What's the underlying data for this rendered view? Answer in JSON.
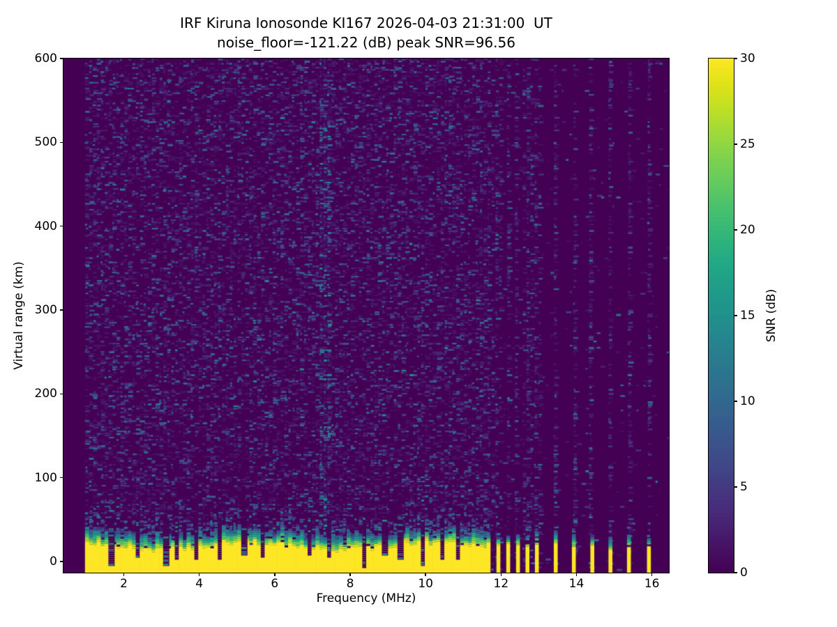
{
  "figure": {
    "title_line1": "IRF Kiruna Ionosonde KI167 2026-04-03 21:31:00  UT",
    "title_line2": "noise_floor=-121.22 (dB) peak SNR=96.56"
  },
  "chart_data": {
    "type": "heatmap",
    "title": "IRF Kiruna Ionosonde KI167 2026-04-03 21:31:00  UT",
    "subtitle": "noise_floor=-121.22 (dB) peak SNR=96.56",
    "station": "IRF Kiruna Ionosonde KI167",
    "timestamp_ut": "2026-04-03 21:31:00",
    "noise_floor_db": -121.22,
    "peak_snr_db": 96.56,
    "xlabel": "Frequency (MHz)",
    "ylabel": "Virtual range (km)",
    "colorbar_label": "SNR (dB)",
    "xlim": [
      0.4,
      16.45
    ],
    "ylim": [
      -13.3,
      600
    ],
    "clim": [
      0,
      30
    ],
    "x_ticks": [
      2,
      4,
      6,
      8,
      10,
      12,
      14,
      16
    ],
    "y_ticks": [
      0,
      100,
      200,
      300,
      400,
      500,
      600
    ],
    "colorbar_ticks": [
      0,
      5,
      10,
      15,
      20,
      25,
      30
    ],
    "colormap": "viridis",
    "colormap_min_hex": "#440154",
    "colormap_max_hex": "#fde725",
    "grid": false,
    "heatmap_model": {
      "seed": 167,
      "data_freq_start_mhz": 0.97,
      "continuous_band_end_mhz": 11.6,
      "noise_speckle_density": 0.4,
      "noise_speckle_max_db": 9,
      "hot_columns_mhz": [
        7.3,
        7.42
      ],
      "ground_clutter_solid_top_km": [
        15,
        28
      ],
      "ground_clutter_transition_top_km": [
        28,
        46
      ],
      "clutter_value_db": 30,
      "notch_freqs_mhz": [
        1.67,
        2.33,
        3.07,
        3.45,
        3.88,
        4.56,
        5.13,
        5.66,
        6.97,
        7.43,
        8.33,
        8.85,
        9.35,
        9.95,
        10.45,
        10.9
      ],
      "deep_notch_freqs_mhz": [
        1.67,
        3.07,
        8.33,
        9.95
      ],
      "dense_stripe_freqs_mhz": [
        11.67,
        11.93,
        12.19,
        12.45,
        12.7,
        12.95
      ],
      "sparse_stripe_freqs_mhz": [
        13.45,
        13.93,
        14.42,
        14.9,
        15.39,
        15.92
      ],
      "stripe_top_km": [
        12,
        24
      ],
      "stripe_transition_km": [
        8,
        18
      ]
    }
  }
}
